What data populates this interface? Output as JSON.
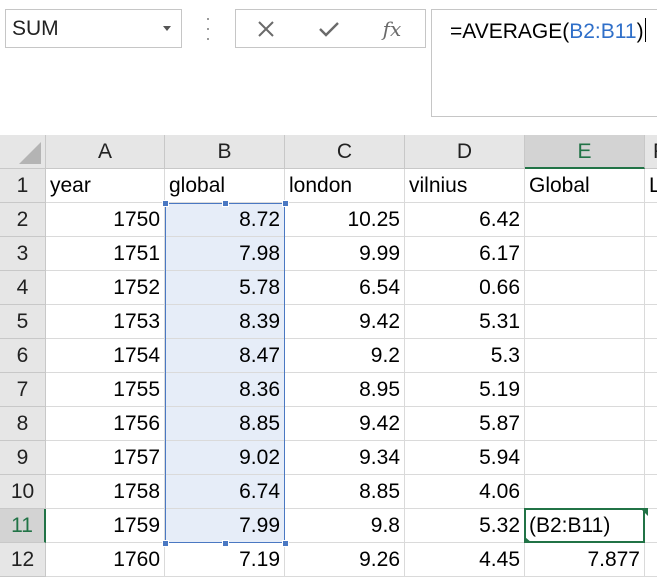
{
  "name_box": {
    "value": "SUM"
  },
  "formula_bar": {
    "prefix": "=AVERAGE(",
    "ref": "B2:B11",
    "suffix": ")",
    "fx_label": "fx"
  },
  "columns": [
    "A",
    "B",
    "C",
    "D",
    "E"
  ],
  "partial_column_letter": "F",
  "rows": [
    {
      "n": "1",
      "a": "year",
      "b": "global",
      "c": "london",
      "d": "vilnius",
      "e": "Global",
      "f": "L"
    },
    {
      "n": "2",
      "a": "1750",
      "b": "8.72",
      "c": "10.25",
      "d": "6.42",
      "e": ""
    },
    {
      "n": "3",
      "a": "1751",
      "b": "7.98",
      "c": "9.99",
      "d": "6.17",
      "e": ""
    },
    {
      "n": "4",
      "a": "1752",
      "b": "5.78",
      "c": "6.54",
      "d": "0.66",
      "e": ""
    },
    {
      "n": "5",
      "a": "1753",
      "b": "8.39",
      "c": "9.42",
      "d": "5.31",
      "e": ""
    },
    {
      "n": "6",
      "a": "1754",
      "b": "8.47",
      "c": "9.2",
      "d": "5.3",
      "e": ""
    },
    {
      "n": "7",
      "a": "1755",
      "b": "8.36",
      "c": "8.95",
      "d": "5.19",
      "e": ""
    },
    {
      "n": "8",
      "a": "1756",
      "b": "8.85",
      "c": "9.42",
      "d": "5.87",
      "e": ""
    },
    {
      "n": "9",
      "a": "1757",
      "b": "9.02",
      "c": "9.34",
      "d": "5.94",
      "e": ""
    },
    {
      "n": "10",
      "a": "1758",
      "b": "6.74",
      "c": "8.85",
      "d": "4.06",
      "e": ""
    },
    {
      "n": "11",
      "a": "1759",
      "b": "7.99",
      "c": "9.8",
      "d": "5.32",
      "e": "(B2:B11)"
    },
    {
      "n": "12",
      "a": "1760",
      "b": "7.19",
      "c": "9.26",
      "d": "4.45",
      "e": "7.877"
    }
  ],
  "colors": {
    "accent": "#217346",
    "range_border": "#4a78c2",
    "range_fill": "#e6edf8",
    "formula_ref": "#2f6fc9"
  },
  "icons": {
    "cancel": "close-icon",
    "enter": "check-icon",
    "function": "fx-icon",
    "name_box_dropdown": "chevron-down-icon"
  }
}
